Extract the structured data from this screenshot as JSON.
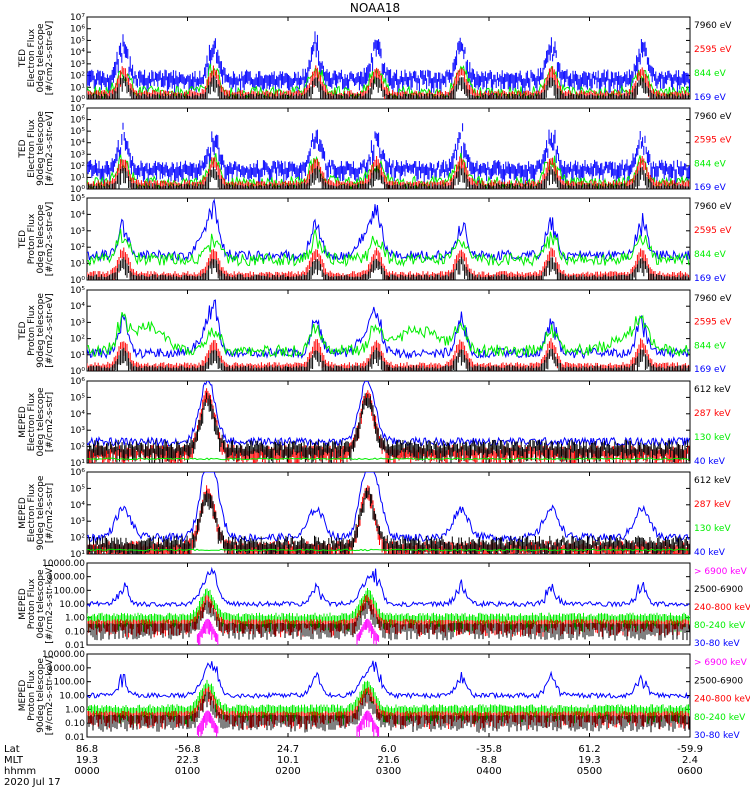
{
  "title": "NOAA18",
  "date_label": "2020 Jul 17",
  "x_axis": {
    "row_labels": [
      "Lat",
      "MLT",
      "hhmm"
    ],
    "lat": [
      "86.8",
      "-56.8",
      "24.7",
      "6.0",
      "-35.8",
      "61.2",
      "-59.9"
    ],
    "mlt": [
      "19.3",
      "22.3",
      "10.1",
      "21.6",
      "8.8",
      "19.3",
      "2.4"
    ],
    "hhmm": [
      "0000",
      "0100",
      "0200",
      "0300",
      "0400",
      "0500",
      "0600"
    ]
  },
  "colors": {
    "blue": "#0000ff",
    "red": "#ff0000",
    "green": "#00ee00",
    "black": "#000000",
    "magenta": "#ff00ff"
  },
  "chart_data": [
    {
      "type": "line",
      "ylabel": [
        "TED",
        "Electron Flux",
        "0deg telescope",
        "[#/cm2-s-str-eV]"
      ],
      "yscale": "log",
      "ylim": [
        1,
        10000000
      ],
      "yticks": [
        "10⁰",
        "10¹",
        "10²",
        "10³",
        "10⁴",
        "10⁵",
        "10⁶",
        "10⁷"
      ],
      "legend": [
        {
          "label": "7960 eV",
          "color": "#000000"
        },
        {
          "label": "2595 eV",
          "color": "#ff0000"
        },
        {
          "label": "844 eV",
          "color": "#00ee00"
        },
        {
          "label": "169 eV",
          "color": "#0000ff"
        }
      ]
    },
    {
      "type": "line",
      "ylabel": [
        "TED",
        "Electron Flux",
        "90deg telescope",
        "[#/cm2-s-str-eV]"
      ],
      "yscale": "log",
      "ylim": [
        1,
        10000000
      ],
      "yticks": [
        "10⁰",
        "10¹",
        "10²",
        "10³",
        "10⁴",
        "10⁵",
        "10⁶",
        "10⁷"
      ],
      "legend": [
        {
          "label": "7960 eV",
          "color": "#000000"
        },
        {
          "label": "2595 eV",
          "color": "#ff0000"
        },
        {
          "label": "844 eV",
          "color": "#00ee00"
        },
        {
          "label": "169 eV",
          "color": "#0000ff"
        }
      ]
    },
    {
      "type": "line",
      "ylabel": [
        "TED",
        "Proton Flux",
        "0deg telescope",
        "[#/cm2-s-str-eV]"
      ],
      "yscale": "log",
      "ylim": [
        1,
        100000
      ],
      "yticks": [
        "10⁰",
        "10¹",
        "10²",
        "10³",
        "10⁴",
        "10⁵"
      ],
      "legend": [
        {
          "label": "7960 eV",
          "color": "#000000"
        },
        {
          "label": "2595 eV",
          "color": "#ff0000"
        },
        {
          "label": "844 eV",
          "color": "#00ee00"
        },
        {
          "label": "169 eV",
          "color": "#0000ff"
        }
      ]
    },
    {
      "type": "line",
      "ylabel": [
        "TED",
        "Proton Flux",
        "90deg telescope",
        "[#/cm2-s-str-eV]"
      ],
      "yscale": "log",
      "ylim": [
        1,
        100000
      ],
      "yticks": [
        "10⁰",
        "10¹",
        "10²",
        "10³",
        "10⁴",
        "10⁵"
      ],
      "legend": [
        {
          "label": "7960 eV",
          "color": "#000000"
        },
        {
          "label": "2595 eV",
          "color": "#ff0000"
        },
        {
          "label": "844 eV",
          "color": "#00ee00"
        },
        {
          "label": "169 eV",
          "color": "#0000ff"
        }
      ]
    },
    {
      "type": "line",
      "ylabel": [
        "MEPED",
        "Electron Flux",
        "0deg telescope",
        "[#/cm2-s-str]"
      ],
      "yscale": "log",
      "ylim": [
        10,
        1000000
      ],
      "yticks": [
        "10¹",
        "10²",
        "10³",
        "10⁴",
        "10⁵",
        "10⁶"
      ],
      "legend": [
        {
          "label": "612 keV",
          "color": "#000000"
        },
        {
          "label": "287 keV",
          "color": "#ff0000"
        },
        {
          "label": "130 keV",
          "color": "#00ee00"
        },
        {
          "label": "40 keV",
          "color": "#0000ff"
        }
      ]
    },
    {
      "type": "line",
      "ylabel": [
        "MEPED",
        "Electron Flux",
        "90deg telescope",
        "[#/cm2-s-str]"
      ],
      "yscale": "log",
      "ylim": [
        10,
        1000000
      ],
      "yticks": [
        "10¹",
        "10²",
        "10³",
        "10⁴",
        "10⁵",
        "10⁶"
      ],
      "legend": [
        {
          "label": "612 keV",
          "color": "#000000"
        },
        {
          "label": "287 keV",
          "color": "#ff0000"
        },
        {
          "label": "130 keV",
          "color": "#00ee00"
        },
        {
          "label": "40 keV",
          "color": "#0000ff"
        }
      ]
    },
    {
      "type": "line",
      "ylabel": [
        "MEPED",
        "Proton Flux",
        "0deg telescope",
        "[#/cm2-s-str-keV]"
      ],
      "yscale": "log",
      "ylim": [
        0.01,
        10000
      ],
      "yticks": [
        "0.01",
        "0.10",
        "1.00",
        "10.00",
        "100.00",
        "1000.00",
        "10000.00"
      ],
      "legend": [
        {
          "label": "> 6900 keV",
          "color": "#ff00ff"
        },
        {
          "label": "2500-6900",
          "color": "#000000"
        },
        {
          "label": "240-800 keV",
          "color": "#ff0000"
        },
        {
          "label": "80-240 keV",
          "color": "#00ee00"
        },
        {
          "label": "30-80 keV",
          "color": "#0000ff"
        }
      ]
    },
    {
      "type": "line",
      "ylabel": [
        "MEPED",
        "Proton Flux",
        "90deg telescope",
        "[#/cm2-s-str-keV]"
      ],
      "yscale": "log",
      "ylim": [
        0.01,
        10000
      ],
      "yticks": [
        "0.01",
        "0.10",
        "1.00",
        "10.00",
        "100.00",
        "1000.00",
        "10000.00"
      ],
      "legend": [
        {
          "label": "> 6900 keV",
          "color": "#ff00ff"
        },
        {
          "label": "2500-6900",
          "color": "#000000"
        },
        {
          "label": "240-800 keV",
          "color": "#ff0000"
        },
        {
          "label": "80-240 keV",
          "color": "#00ee00"
        },
        {
          "label": "30-80 keV",
          "color": "#0000ff"
        }
      ]
    }
  ]
}
